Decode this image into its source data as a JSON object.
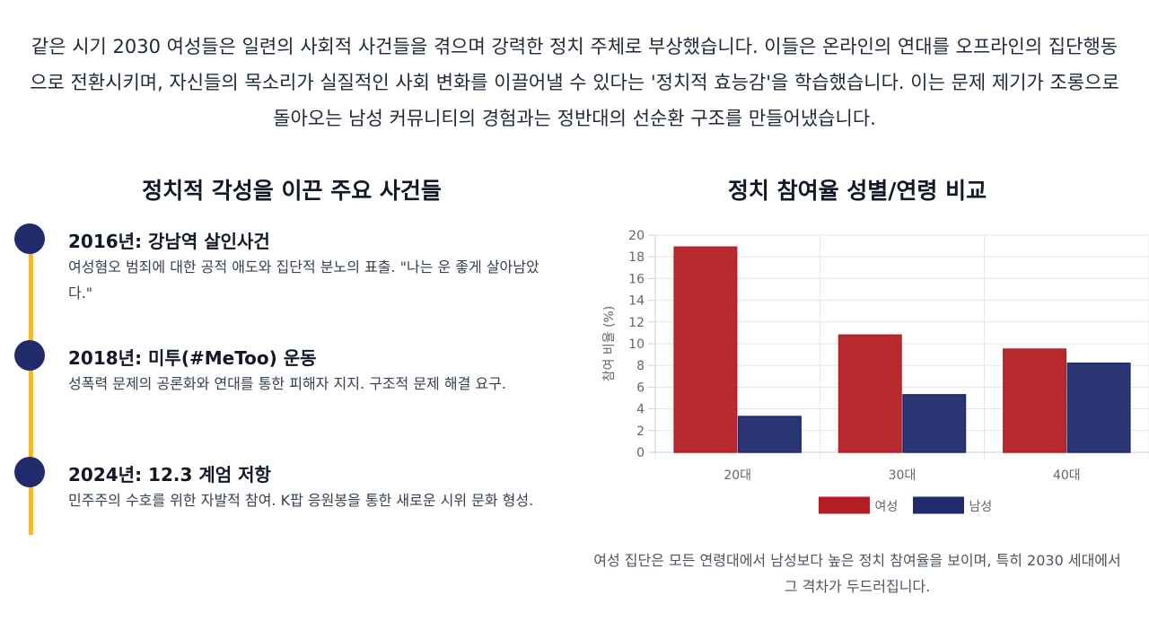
{
  "intro": {
    "text": "같은 시기 2030 여성들은 일련의 사회적 사건들을 겪으며 강력한 정치 주체로 부상했습니다. 이들은 온라인의 연대를 오프라인의 집단행동으로 전환시키며, 자신들의 목소리가 실질적인 사회 변화를 이끌어낼 수 있다는 '정치적 효능감'을 학습했습니다. 이는 문제 제기가 조롱으로 돌아오는 남성 커뮤니티의 경험과는 정반대의 선순환 구조를 만들어냈습니다."
  },
  "timeline": {
    "title": "정치적 각성을 이끈 주요 사건들",
    "events": [
      {
        "title": "2016년: 강남역 살인사건",
        "desc": "여성혐오 범죄에 대한 공적 애도와 집단적 분노의 표출. \"나는 운 좋게 살아남았다.\""
      },
      {
        "title": "2018년: 미투(#MeToo) 운동",
        "desc": "성폭력 문제의 공론화와 연대를 통한 피해자 지지. 구조적 문제 해결 요구."
      },
      {
        "title": "2024년: 12.3 계엄 저항",
        "desc": "민주주의 수호를 위한 자발적 참여. K팝 응원봉을 통한 새로운 시위 문화 형성."
      }
    ]
  },
  "chart_section": {
    "title": "정치 참여율 성별/연령 비교",
    "caption": "여성 집단은 모든 연령대에서 남성보다 높은 정치 참여율을 보이며, 특히 2030 세대에서 그 격차가 두드러집니다."
  },
  "chart_data": {
    "type": "bar",
    "categories": [
      "20대",
      "30대",
      "40대"
    ],
    "series": [
      {
        "name": "여성",
        "values": [
          18.9,
          10.8,
          9.5
        ],
        "color": "#b31f24"
      },
      {
        "name": "남성",
        "values": [
          3.3,
          5.3,
          8.2
        ],
        "color": "#1f2b6b"
      }
    ],
    "xlabel": "",
    "ylabel": "참여 비율 (%)",
    "ylim": [
      0,
      20
    ],
    "yticks": [
      0,
      2,
      4,
      6,
      8,
      10,
      12,
      14,
      16,
      18,
      20
    ],
    "grid": true,
    "legend": "bottom"
  }
}
